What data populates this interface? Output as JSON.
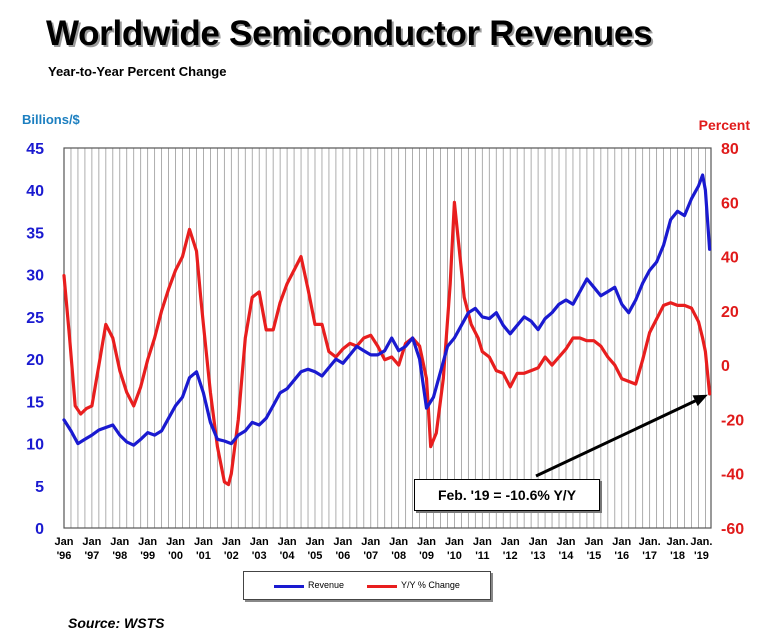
{
  "title": "Worldwide Semiconductor Revenues",
  "subtitle": "Year-to-Year Percent Change",
  "source": "Source: WSTS",
  "colors": {
    "revenue": "#1a1ad0",
    "yoy": "#e81e1e",
    "left_axis_label": "#1c7fc0",
    "grid": "#999999"
  },
  "annotation": "Feb. '19 = -10.6% Y/Y",
  "chart_data": {
    "type": "line",
    "title": "Worldwide Semiconductor Revenues",
    "subtitle": "Year-to-Year Percent Change",
    "y_left_label": "Billions/$",
    "y_right_label": "Percent",
    "ylim_left": [
      0,
      45
    ],
    "ylim_right": [
      -60,
      80
    ],
    "y_left_ticks": [
      "0",
      "5",
      "10",
      "15",
      "20",
      "25",
      "30",
      "35",
      "40",
      "45"
    ],
    "y_right_ticks": [
      "-60",
      "-40",
      "-20",
      "0",
      "20",
      "40",
      "60",
      "80"
    ],
    "x_range": [
      1996.0,
      2019.2
    ],
    "x_ticks": [
      {
        "top": "Jan",
        "bottom": "'96"
      },
      {
        "top": "Jan",
        "bottom": "'97"
      },
      {
        "top": "Jan",
        "bottom": "'98"
      },
      {
        "top": "Jan",
        "bottom": "'99"
      },
      {
        "top": "Jan",
        "bottom": "'00"
      },
      {
        "top": "Jan",
        "bottom": "'01"
      },
      {
        "top": "Jan",
        "bottom": "'02"
      },
      {
        "top": "Jan",
        "bottom": "'03"
      },
      {
        "top": "Jan",
        "bottom": "'04"
      },
      {
        "top": "Jan",
        "bottom": "'05"
      },
      {
        "top": "Jan",
        "bottom": "'06"
      },
      {
        "top": "Jan",
        "bottom": "'07"
      },
      {
        "top": "Jan",
        "bottom": "'08"
      },
      {
        "top": "Jan",
        "bottom": "'09"
      },
      {
        "top": "Jan",
        "bottom": "'10"
      },
      {
        "top": "Jan",
        "bottom": "'11"
      },
      {
        "top": "Jan",
        "bottom": "'12"
      },
      {
        "top": "Jan",
        "bottom": "'13"
      },
      {
        "top": "Jan",
        "bottom": "'14"
      },
      {
        "top": "Jan",
        "bottom": "'15"
      },
      {
        "top": "Jan",
        "bottom": "'16"
      },
      {
        "top": "Jan.",
        "bottom": "'17"
      },
      {
        "top": "Jan.",
        "bottom": "'18"
      },
      {
        "top": "Jan.",
        "bottom": "'19"
      }
    ],
    "grid": "vertical",
    "legend_position": "bottom-center",
    "series": [
      {
        "name": "Revenue",
        "axis": "left",
        "x": [
          1996.0,
          1996.25,
          1996.5,
          1996.75,
          1997.0,
          1997.25,
          1997.5,
          1997.75,
          1998.0,
          1998.25,
          1998.5,
          1998.75,
          1999.0,
          1999.25,
          1999.5,
          1999.75,
          2000.0,
          2000.25,
          2000.5,
          2000.75,
          2001.0,
          2001.25,
          2001.5,
          2001.75,
          2002.0,
          2002.25,
          2002.5,
          2002.75,
          2003.0,
          2003.25,
          2003.5,
          2003.75,
          2004.0,
          2004.25,
          2004.5,
          2004.75,
          2005.0,
          2005.25,
          2005.5,
          2005.75,
          2006.0,
          2006.25,
          2006.5,
          2006.75,
          2007.0,
          2007.25,
          2007.5,
          2007.75,
          2008.0,
          2008.25,
          2008.5,
          2008.75,
          2009.0,
          2009.25,
          2009.5,
          2009.75,
          2010.0,
          2010.25,
          2010.5,
          2010.75,
          2011.0,
          2011.25,
          2011.5,
          2011.75,
          2012.0,
          2012.25,
          2012.5,
          2012.75,
          2013.0,
          2013.25,
          2013.5,
          2013.75,
          2014.0,
          2014.25,
          2014.5,
          2014.75,
          2015.0,
          2015.25,
          2015.5,
          2015.75,
          2016.0,
          2016.25,
          2016.5,
          2016.75,
          2017.0,
          2017.25,
          2017.5,
          2017.75,
          2018.0,
          2018.25,
          2018.5,
          2018.75,
          2018.9,
          2019.0,
          2019.15
        ],
        "values": [
          12.8,
          11.5,
          10.0,
          10.5,
          11.0,
          11.6,
          11.9,
          12.2,
          11.0,
          10.2,
          9.8,
          10.5,
          11.3,
          11.0,
          11.5,
          13.0,
          14.5,
          15.5,
          17.8,
          18.5,
          16.0,
          12.5,
          10.5,
          10.3,
          10.0,
          11.0,
          11.5,
          12.5,
          12.2,
          13.0,
          14.5,
          16.0,
          16.5,
          17.5,
          18.5,
          18.8,
          18.5,
          18.0,
          19.0,
          20.0,
          19.5,
          20.5,
          21.5,
          21.0,
          20.5,
          20.5,
          21.0,
          22.5,
          21.0,
          21.5,
          22.5,
          20.0,
          14.2,
          15.5,
          18.5,
          21.5,
          22.5,
          24.0,
          25.5,
          26.0,
          25.0,
          24.8,
          25.5,
          24.0,
          23.0,
          24.0,
          25.0,
          24.5,
          23.5,
          24.8,
          25.5,
          26.5,
          27.0,
          26.5,
          28.0,
          29.5,
          28.5,
          27.5,
          28.0,
          28.5,
          26.5,
          25.5,
          27.0,
          29.0,
          30.5,
          31.5,
          33.5,
          36.5,
          37.5,
          37.0,
          39.0,
          40.5,
          41.8,
          40.0,
          33.0
        ]
      },
      {
        "name": "Y/Y % Change",
        "axis": "right",
        "x": [
          1996.0,
          1996.2,
          1996.4,
          1996.6,
          1996.8,
          1997.0,
          1997.25,
          1997.5,
          1997.75,
          1998.0,
          1998.25,
          1998.5,
          1998.75,
          1999.0,
          1999.25,
          1999.5,
          1999.75,
          2000.0,
          2000.25,
          2000.5,
          2000.75,
          2000.9,
          2001.0,
          2001.25,
          2001.5,
          2001.75,
          2001.9,
          2002.0,
          2002.25,
          2002.5,
          2002.75,
          2003.0,
          2003.25,
          2003.5,
          2003.75,
          2004.0,
          2004.25,
          2004.5,
          2004.75,
          2005.0,
          2005.25,
          2005.5,
          2005.75,
          2006.0,
          2006.25,
          2006.5,
          2006.75,
          2007.0,
          2007.25,
          2007.5,
          2007.75,
          2008.0,
          2008.25,
          2008.5,
          2008.75,
          2009.0,
          2009.15,
          2009.35,
          2009.6,
          2009.85,
          2010.0,
          2010.15,
          2010.35,
          2010.6,
          2010.85,
          2011.0,
          2011.25,
          2011.5,
          2011.75,
          2012.0,
          2012.25,
          2012.5,
          2012.75,
          2013.0,
          2013.25,
          2013.5,
          2013.75,
          2014.0,
          2014.25,
          2014.5,
          2014.75,
          2015.0,
          2015.25,
          2015.5,
          2015.75,
          2016.0,
          2016.25,
          2016.5,
          2016.75,
          2017.0,
          2017.25,
          2017.5,
          2017.75,
          2018.0,
          2018.25,
          2018.5,
          2018.75,
          2018.9,
          2019.0,
          2019.15
        ],
        "values": [
          33.0,
          10.0,
          -15.0,
          -18.0,
          -16.0,
          -15.0,
          0.0,
          15.0,
          10.0,
          -2.0,
          -10.0,
          -15.0,
          -8.0,
          2.0,
          10.0,
          20.0,
          28.0,
          35.0,
          40.0,
          50.0,
          42.0,
          25.0,
          15.0,
          -10.0,
          -30.0,
          -43.0,
          -44.0,
          -40.0,
          -20.0,
          10.0,
          25.0,
          27.0,
          13.0,
          13.0,
          23.0,
          30.0,
          35.0,
          40.0,
          28.0,
          15.0,
          15.0,
          5.0,
          3.0,
          6.0,
          8.0,
          7.0,
          10.0,
          11.0,
          7.0,
          2.0,
          3.0,
          0.0,
          8.0,
          10.0,
          7.0,
          -5.0,
          -30.0,
          -25.0,
          -5.0,
          30.0,
          60.0,
          45.0,
          25.0,
          15.0,
          10.0,
          5.0,
          3.0,
          -2.0,
          -3.0,
          -8.0,
          -3.0,
          -3.0,
          -2.0,
          -1.0,
          3.0,
          0.0,
          3.0,
          6.0,
          10.0,
          10.0,
          9.0,
          9.0,
          7.0,
          3.0,
          0.0,
          -5.0,
          -6.0,
          -7.0,
          2.0,
          12.0,
          17.0,
          22.0,
          23.0,
          22.0,
          22.0,
          21.0,
          16.0,
          10.0,
          5.0,
          -10.6
        ]
      }
    ]
  }
}
